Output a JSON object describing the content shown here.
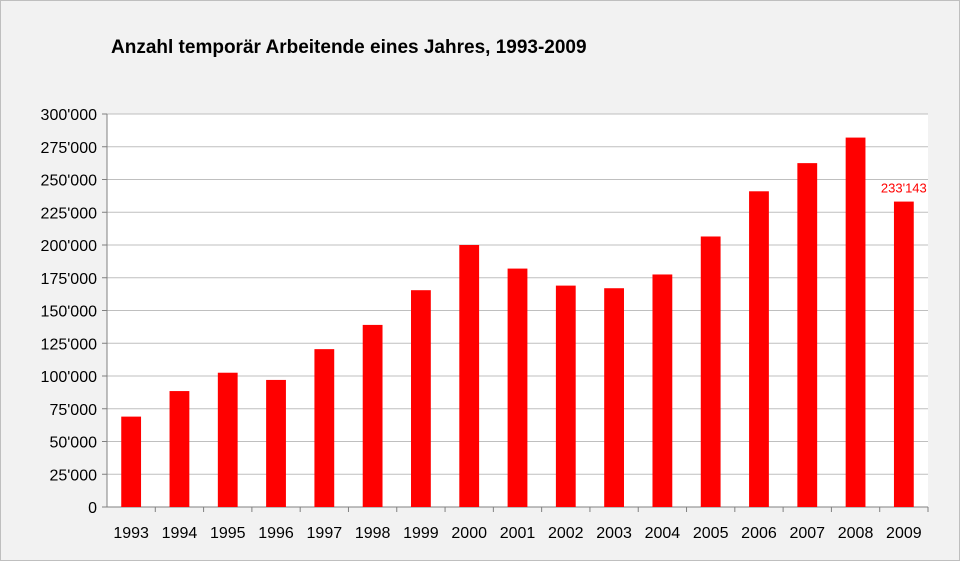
{
  "chart_data": {
    "type": "bar",
    "title": "Anzahl temporär Arbeitende eines Jahres, 1993-2009",
    "xlabel": "",
    "ylabel": "",
    "categories": [
      "1993",
      "1994",
      "1995",
      "1996",
      "1997",
      "1998",
      "1999",
      "2000",
      "2001",
      "2002",
      "2003",
      "2004",
      "2005",
      "2006",
      "2007",
      "2008",
      "2009"
    ],
    "values": [
      69000,
      88500,
      102500,
      97000,
      120500,
      139000,
      165500,
      200000,
      182000,
      169000,
      167000,
      177500,
      206500,
      241000,
      262500,
      282000,
      233143
    ],
    "ylim": [
      0,
      300000
    ],
    "y_ticks": [
      0,
      25000,
      50000,
      75000,
      100000,
      125000,
      150000,
      175000,
      200000,
      225000,
      250000,
      275000,
      300000
    ],
    "y_tick_labels": [
      "0",
      "25'000",
      "50'000",
      "75'000",
      "100'000",
      "125'000",
      "150'000",
      "175'000",
      "200'000",
      "225'000",
      "250'000",
      "275'000",
      "300'000"
    ],
    "data_labels": [
      {
        "category": "2009",
        "text": "233'143"
      }
    ],
    "grid": true,
    "legend": "none",
    "bar_color": "#ff0000",
    "label_color": "#ff0000",
    "grid_color": "#bfbfbf",
    "panel_color": "#ffffff",
    "background_color": "#f2f2f2"
  }
}
